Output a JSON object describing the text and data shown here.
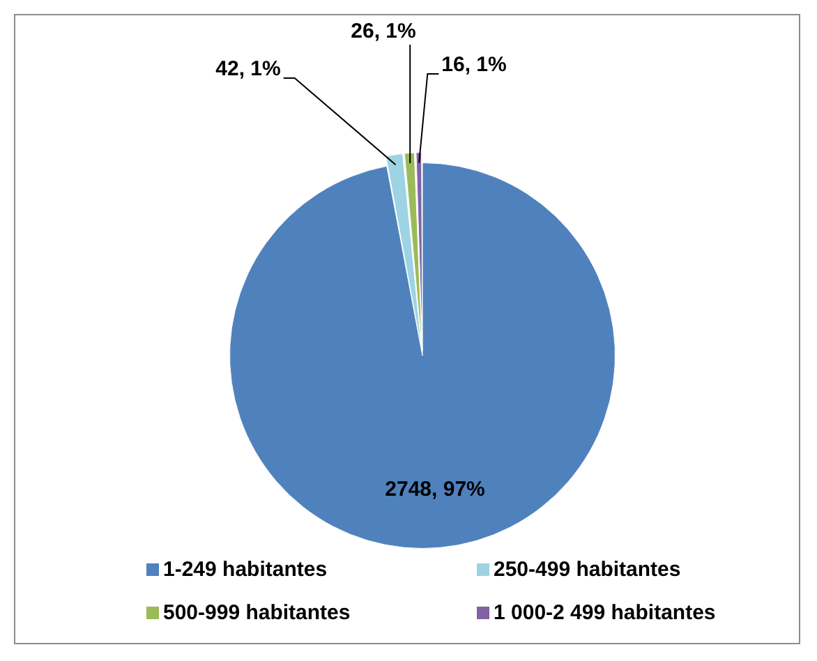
{
  "chart_data": {
    "type": "pie",
    "categories": [
      "1-249 habitantes",
      "250-499 habitantes",
      "500-999 habitantes",
      "1 000-2 499 habitantes"
    ],
    "values": [
      2748,
      42,
      26,
      16
    ],
    "colors": [
      "#4f81bd",
      "#9dd3e3",
      "#9bbb59",
      "#8064a2"
    ],
    "value_labels": [
      "2748, 97%",
      "42, 1%",
      "26, 1%",
      "16, 1%"
    ],
    "legend": "bottom"
  }
}
